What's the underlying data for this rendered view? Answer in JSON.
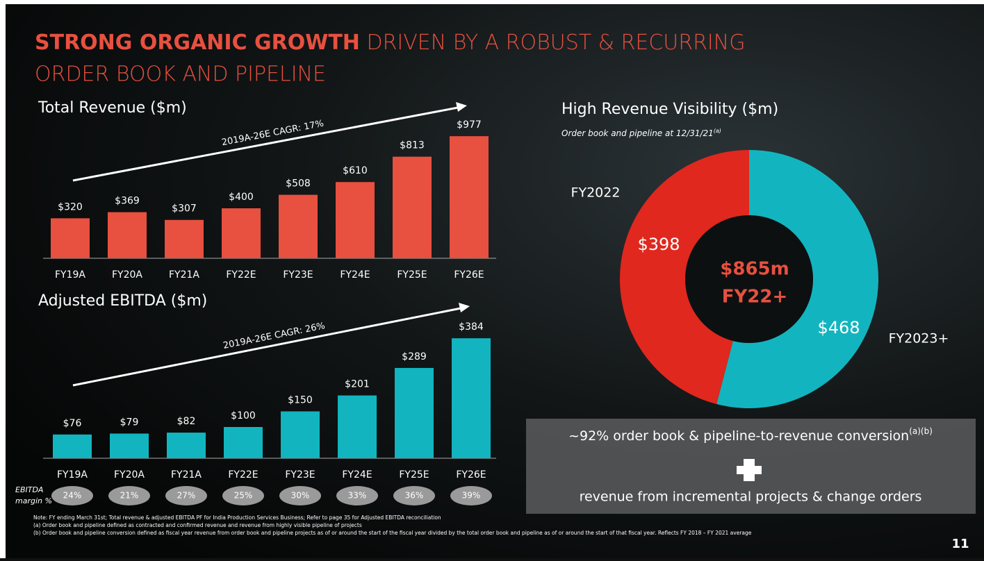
{
  "header": {
    "title_bold": "STRONG ORGANIC GROWTH",
    "title_rest": "DRIVEN BY A ROBUST & RECURRING",
    "title_line2": "ORDER BOOK AND PIPELINE"
  },
  "chart_data": [
    {
      "type": "bar",
      "title": "Total Revenue ($m)",
      "annotation": "2019A-26E CAGR: 17%",
      "categories": [
        "FY19A",
        "FY20A",
        "FY21A",
        "FY22E",
        "FY23E",
        "FY24E",
        "FY25E",
        "FY26E"
      ],
      "values": [
        320,
        369,
        307,
        400,
        508,
        610,
        813,
        977
      ],
      "value_labels": [
        "$320",
        "$369",
        "$307",
        "$400",
        "$508",
        "$610",
        "$813",
        "$977"
      ],
      "color": "#e8503f",
      "ylim": [
        0,
        1000
      ]
    },
    {
      "type": "bar",
      "title": "Adjusted EBITDA ($m)",
      "annotation": "2019A-26E CAGR: 26%",
      "categories": [
        "FY19A",
        "FY20A",
        "FY21A",
        "FY22E",
        "FY23E",
        "FY24E",
        "FY25E",
        "FY26E"
      ],
      "values": [
        76,
        79,
        82,
        100,
        150,
        201,
        289,
        384
      ],
      "value_labels": [
        "$76",
        "$79",
        "$82",
        "$100",
        "$150",
        "$201",
        "$289",
        "$384"
      ],
      "color": "#12b5bf",
      "ylim": [
        0,
        400
      ],
      "margins": {
        "label": [
          "EBITDA",
          "margin %"
        ],
        "values": [
          24,
          21,
          27,
          25,
          30,
          33,
          36,
          39
        ],
        "value_labels": [
          "24%",
          "21%",
          "27%",
          "25%",
          "30%",
          "33%",
          "36%",
          "39%"
        ]
      }
    },
    {
      "type": "pie",
      "title": "High Revenue Visibility ($m)",
      "subtitle": "Order book and pipeline at 12/31/21",
      "subtitle_note": "(a)",
      "categories": [
        "FY2022",
        "FY2023+"
      ],
      "values": [
        398,
        468
      ],
      "value_labels": [
        "$398",
        "$468"
      ],
      "colors": [
        "#e0281e",
        "#12b5bf"
      ],
      "center_text": [
        "$865m",
        "FY22+"
      ]
    }
  ],
  "box": {
    "line1": "~92% order book & pipeline-to-revenue conversion",
    "line1_note": "(a)(b)",
    "line2": "revenue from incremental projects & change orders"
  },
  "footnotes": [
    "Note: FY ending March 31st; Total revenue & adjusted EBITDA PF for India Production Services Business; Refer to page 35 for Adjusted EBITDA reconciliation",
    "(a)  Order book and pipeline defined as contracted and confirmed revenue and revenue from highly visible pipeline of projects",
    "(b)  Order book and pipeline conversion defined as fiscal year revenue from order book and pipeline projects as of or around the start of the fiscal year divided by the total order book and pipeline as of or around the start of that fiscal year. Reflects FY 2018 – FY 2021 average"
  ],
  "page_number": "11"
}
